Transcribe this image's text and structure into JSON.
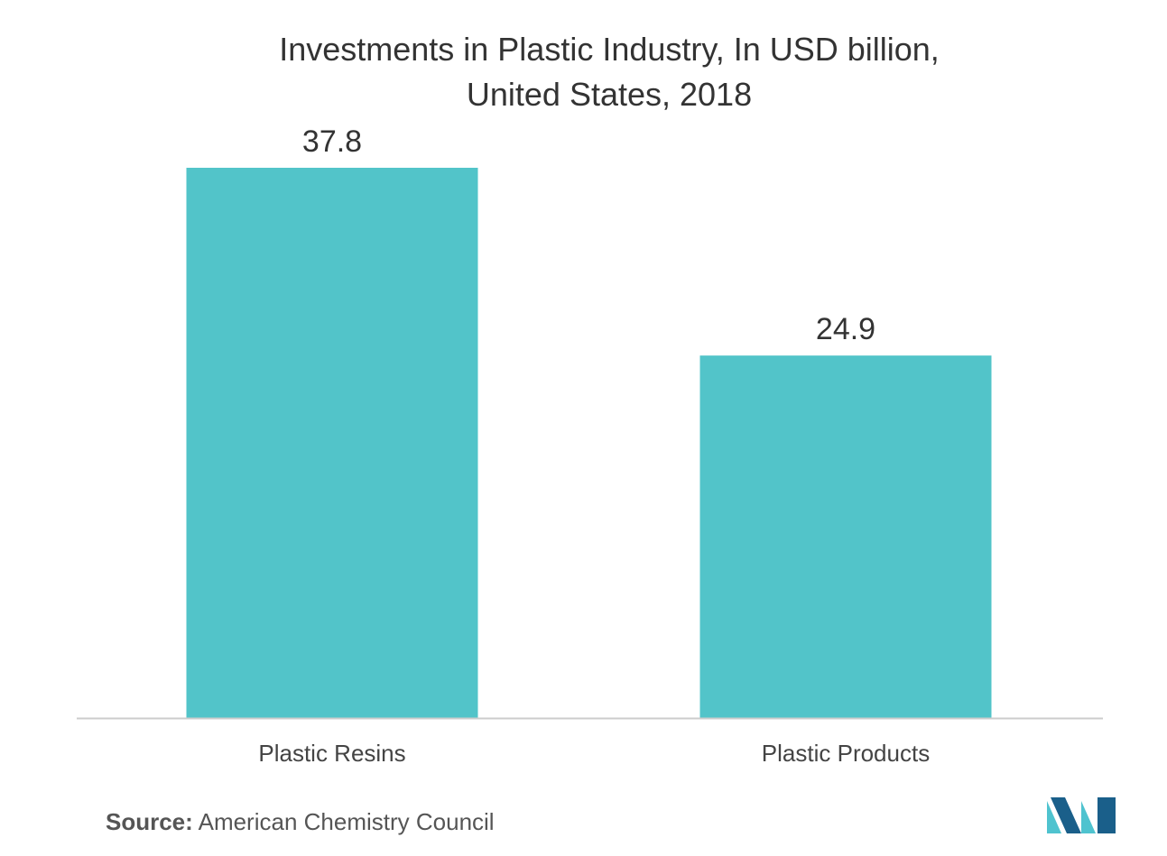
{
  "chart_data": {
    "type": "bar",
    "title_lines": [
      "Investments in Plastic Industry, In USD billion,",
      "United States, 2018"
    ],
    "categories": [
      "Plastic Resins",
      "Plastic Products"
    ],
    "values": [
      37.8,
      24.9
    ],
    "value_labels": [
      "37.8",
      "24.9"
    ],
    "ylim": [
      0,
      37.8
    ],
    "grid": false,
    "legend": "none",
    "bar_color": "#52C4C9",
    "axis_color": "#cccccc"
  },
  "source": {
    "label": "Source:",
    "text": " American Chemistry Council"
  },
  "logo": {
    "icon": "brand-logo-icon",
    "color_dark": "#1a5f8a",
    "color_light": "#4fc3cf"
  }
}
